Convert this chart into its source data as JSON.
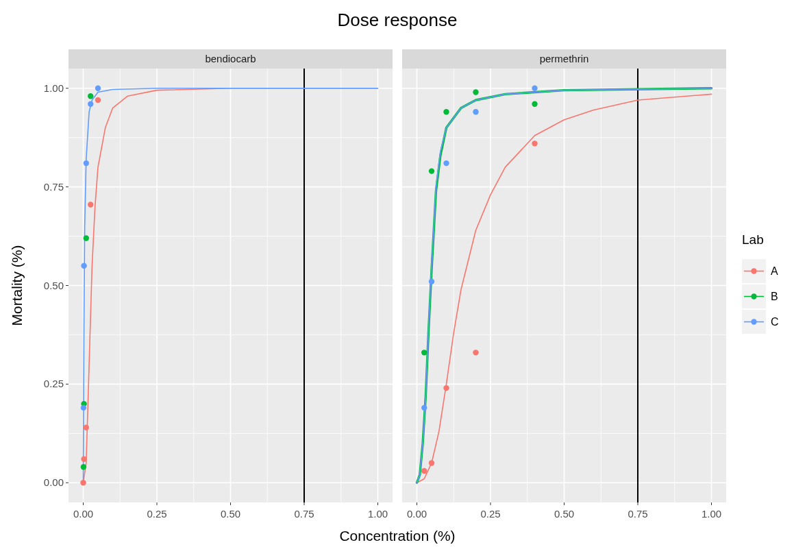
{
  "chart_data": [
    {
      "type": "scatter",
      "title": "Dose response",
      "subtitle": "bendiocarb",
      "xlabel": "Concentration (%)",
      "ylabel": "Mortality (%)",
      "xlim": [
        -0.05,
        1.05
      ],
      "ylim": [
        -0.05,
        1.05
      ],
      "xticks": [
        {
          "value": 0,
          "label": "0.00"
        },
        {
          "value": 0.25,
          "label": "0.25"
        },
        {
          "value": 0.5,
          "label": "0.50"
        },
        {
          "value": 0.75,
          "label": "0.75"
        },
        {
          "value": 1,
          "label": "1.00"
        }
      ],
      "yticks": [
        {
          "value": 0,
          "label": "0.00"
        },
        {
          "value": 0.25,
          "label": "0.25"
        },
        {
          "value": 0.5,
          "label": "0.50"
        },
        {
          "value": 0.75,
          "label": "0.75"
        },
        {
          "value": 1,
          "label": "1.00"
        }
      ],
      "grid": true,
      "legend": "right",
      "legend_title": "Lab",
      "ref_lines": [
        {
          "axis": "x",
          "value": 0.75,
          "color": "#000000"
        }
      ],
      "series": [
        {
          "name": "A",
          "marker": "circle",
          "color": "#f8766d",
          "x": [
            0,
            0.0025,
            0.01,
            0.025,
            0.05
          ],
          "values": [
            0,
            0.06,
            0.14,
            0.705,
            0.97
          ]
        },
        {
          "name": "B",
          "marker": "circle",
          "color": "#00ba38",
          "x": [
            0.001,
            0.0025,
            0.01,
            0.025
          ],
          "values": [
            0.04,
            0.2,
            0.62,
            0.98
          ]
        },
        {
          "name": "C",
          "marker": "circle",
          "color": "#619cff",
          "x": [
            0.001,
            0.0025,
            0.01,
            0.025,
            0.05
          ],
          "values": [
            0.19,
            0.55,
            0.81,
            0.96,
            1.0
          ]
        },
        {
          "type": "line",
          "color": "#f8766d",
          "x": [
            0,
            0.01,
            0.02,
            0.03,
            0.04,
            0.05,
            0.075,
            0.1,
            0.15,
            0.25,
            0.5,
            1
          ],
          "values": [
            0,
            0.05,
            0.3,
            0.55,
            0.7,
            0.8,
            0.9,
            0.95,
            0.98,
            0.995,
            1,
            1
          ]
        },
        {
          "type": "line",
          "color": "#619cff",
          "x": [
            0,
            0.0025,
            0.005,
            0.01,
            0.02,
            0.03,
            0.05,
            0.1,
            0.25,
            1
          ],
          "values": [
            0,
            0.4,
            0.65,
            0.82,
            0.94,
            0.97,
            0.99,
            0.997,
            1,
            1
          ]
        }
      ]
    },
    {
      "type": "scatter",
      "subtitle": "permethrin",
      "xlim": [
        -0.05,
        1.05
      ],
      "ylim": [
        -0.05,
        1.05
      ],
      "xticks": [
        {
          "value": 0,
          "label": "0.00"
        },
        {
          "value": 0.25,
          "label": "0.25"
        },
        {
          "value": 0.5,
          "label": "0.50"
        },
        {
          "value": 0.75,
          "label": "0.75"
        },
        {
          "value": 1,
          "label": "1.00"
        }
      ],
      "yticks": [
        0,
        0.25,
        0.5,
        0.75,
        1
      ],
      "tick_labels": "x",
      "grid": true,
      "ref_lines": [
        {
          "axis": "x",
          "value": 0.75,
          "color": "#000000"
        }
      ],
      "series": [
        {
          "marker": "circle",
          "color": "#f8766d",
          "x": [
            0.025,
            0.05,
            0.1,
            0.2,
            0.4
          ],
          "values": [
            0.03,
            0.05,
            0.24,
            0.33,
            0.86
          ]
        },
        {
          "marker": "circle",
          "color": "#00ba38",
          "x": [
            0.025,
            0.05,
            0.1,
            0.2,
            0.4
          ],
          "values": [
            0.33,
            0.79,
            0.94,
            0.99,
            0.96
          ]
        },
        {
          "marker": "circle",
          "color": "#619cff",
          "x": [
            0.025,
            0.05,
            0.1,
            0.2,
            0.4
          ],
          "values": [
            0.19,
            0.51,
            0.81,
            0.94,
            1.0
          ]
        },
        {
          "type": "line",
          "color": "#f8766d",
          "x": [
            0,
            0.025,
            0.05,
            0.075,
            0.1,
            0.125,
            0.15,
            0.2,
            0.25,
            0.3,
            0.4,
            0.5,
            0.6,
            0.75,
            1
          ],
          "values": [
            0,
            0.01,
            0.05,
            0.13,
            0.25,
            0.38,
            0.49,
            0.64,
            0.73,
            0.8,
            0.88,
            0.92,
            0.945,
            0.97,
            0.985
          ]
        },
        {
          "type": "line",
          "color": "#00ba38",
          "x": [
            0,
            0.01,
            0.02,
            0.03,
            0.04,
            0.05,
            0.065,
            0.08,
            0.1,
            0.15,
            0.2,
            0.3,
            0.5,
            1
          ],
          "values": [
            0,
            0.02,
            0.1,
            0.22,
            0.39,
            0.54,
            0.74,
            0.83,
            0.9,
            0.95,
            0.97,
            0.985,
            0.995,
            1
          ]
        },
        {
          "type": "line",
          "color": "#619cff",
          "x": [
            0,
            0.01,
            0.02,
            0.03,
            0.04,
            0.05,
            0.065,
            0.08,
            0.1,
            0.15,
            0.2,
            0.3,
            0.5,
            1
          ],
          "values": [
            0,
            0.02,
            0.1,
            0.22,
            0.4,
            0.55,
            0.75,
            0.84,
            0.9,
            0.95,
            0.97,
            0.985,
            0.995,
            1
          ]
        }
      ]
    }
  ]
}
